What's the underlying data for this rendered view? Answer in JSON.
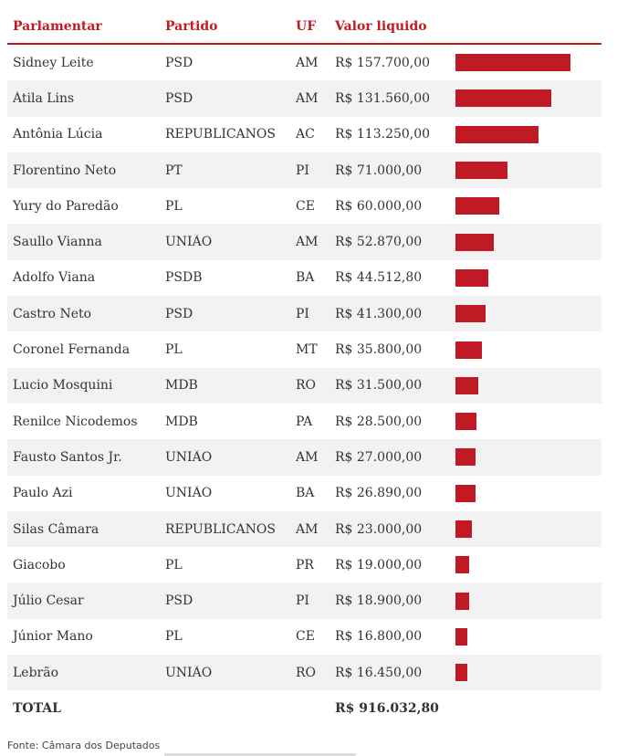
{
  "table": {
    "headers": {
      "name": "Parlamentar",
      "party": "Partido",
      "uf": "UF",
      "value": "Valor liquido"
    },
    "rows": [
      {
        "name": "Sidney Leite",
        "party": "PSD",
        "uf": "AM",
        "value": "R$ 157.700,00",
        "amount": 157700.0
      },
      {
        "name": "Átila Lins",
        "party": "PSD",
        "uf": "AM",
        "value": "R$ 131.560,00",
        "amount": 131560.0
      },
      {
        "name": "Antônia Lúcia",
        "party": "REPUBLICANOS",
        "uf": "AC",
        "value": "R$ 113.250,00",
        "amount": 113250.0
      },
      {
        "name": "Florentino Neto",
        "party": "PT",
        "uf": "PI",
        "value": "R$ 71.000,00",
        "amount": 71000.0
      },
      {
        "name": "Yury do Paredão",
        "party": "PL",
        "uf": "CE",
        "value": "R$ 60.000,00",
        "amount": 60000.0
      },
      {
        "name": "Saullo Vianna",
        "party": "UNIÃO",
        "uf": "AM",
        "value": "R$ 52.870,00",
        "amount": 52870.0
      },
      {
        "name": "Adolfo Viana",
        "party": "PSDB",
        "uf": "BA",
        "value": "R$ 44.512,80",
        "amount": 44512.8
      },
      {
        "name": "Castro Neto",
        "party": "PSD",
        "uf": "PI",
        "value": "R$ 41.300,00",
        "amount": 41300.0
      },
      {
        "name": "Coronel Fernanda",
        "party": "PL",
        "uf": "MT",
        "value": "R$ 35.800,00",
        "amount": 35800.0
      },
      {
        "name": "Lucio Mosquini",
        "party": "MDB",
        "uf": "RO",
        "value": "R$ 31.500,00",
        "amount": 31500.0
      },
      {
        "name": "Renilce Nicodemos",
        "party": "MDB",
        "uf": "PA",
        "value": "R$ 28.500,00",
        "amount": 28500.0
      },
      {
        "name": "Fausto Santos Jr.",
        "party": "UNIÃO",
        "uf": "AM",
        "value": "R$ 27.000,00",
        "amount": 27000.0
      },
      {
        "name": "Paulo Azi",
        "party": "UNIÃO",
        "uf": "BA",
        "value": "R$ 26.890,00",
        "amount": 26890.0
      },
      {
        "name": "Silas Câmara",
        "party": "REPUBLICANOS",
        "uf": "AM",
        "value": "R$ 23.000,00",
        "amount": 23000.0
      },
      {
        "name": "Giacobo",
        "party": "PL",
        "uf": "PR",
        "value": "R$ 19.000,00",
        "amount": 19000.0
      },
      {
        "name": "Júlio Cesar",
        "party": "PSD",
        "uf": "PI",
        "value": "R$ 18.900,00",
        "amount": 18900.0
      },
      {
        "name": "Júnior Mano",
        "party": "PL",
        "uf": "CE",
        "value": "R$ 16.800,00",
        "amount": 16800.0
      },
      {
        "name": "Lebrão",
        "party": "UNIÃO",
        "uf": "RO",
        "value": "R$ 16.450,00",
        "amount": 16450.0
      }
    ],
    "total": {
      "label": "TOTAL",
      "value": "R$ 916.032,80"
    },
    "bar_max": 157700.0
  },
  "source": "Fonte: Câmara dos Deputados",
  "colors": {
    "accent": "#c01a24",
    "stripe": "#f2f2f2"
  }
}
